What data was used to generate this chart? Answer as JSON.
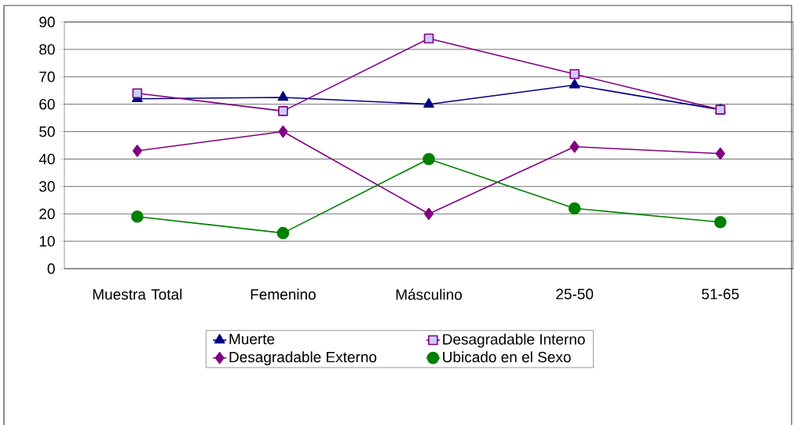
{
  "chart_data": {
    "type": "line",
    "categories": [
      "Muestra Total",
      "Femenino",
      "Másculino",
      "25-50",
      "51-65"
    ],
    "series": [
      {
        "name": "Muerte",
        "color": "#000080",
        "marker": "triangle",
        "values": [
          62,
          62.5,
          60,
          67,
          58
        ]
      },
      {
        "name": "Desagradable Interno",
        "color": "#800080",
        "marker": "square",
        "values": [
          64,
          57.5,
          84,
          71,
          58
        ]
      },
      {
        "name": "Desagradable Externo",
        "color": "#800080",
        "marker": "diamond",
        "values": [
          43,
          50,
          20,
          44.5,
          42
        ]
      },
      {
        "name": "Ubicado en el Sexo",
        "color": "#008000",
        "marker": "circle",
        "values": [
          19,
          13,
          40,
          22,
          17
        ]
      }
    ],
    "ylim": [
      0,
      90
    ],
    "yticks": [
      0,
      10,
      20,
      30,
      40,
      50,
      60,
      70,
      80,
      90
    ],
    "grid": "y",
    "legend": "bottom",
    "line_style": "solid"
  }
}
